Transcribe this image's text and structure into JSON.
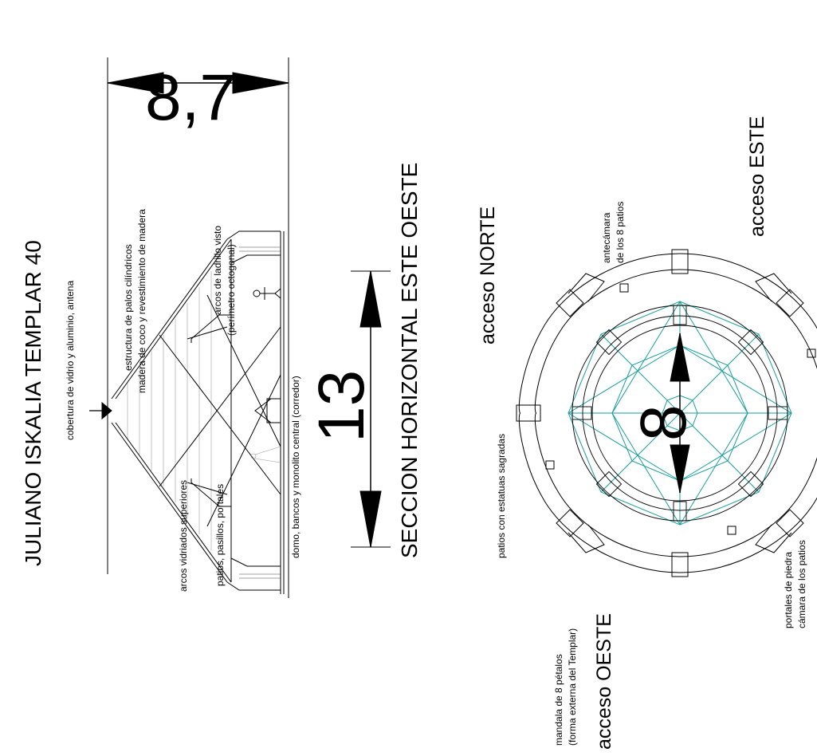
{
  "title": "JULIANO ISKALIA TEMPLAR 40",
  "section_title": "SECCION HORIZONTAL ESTE OESTE",
  "dimensions": {
    "height_value": "8,7",
    "width_value": "13",
    "inner_value": "8"
  },
  "elevation_labels": {
    "cover": "cobertura de vidrio y aluminio, antena",
    "structure_1": "estructura de palos cilíndricos",
    "structure_2": "madera de coco y revestimiento de madera",
    "arches_1": "arcos de ladrillo visto",
    "arches_2": "(perímetro octogonal)",
    "glazed_arches": "arcos vidriados superiores",
    "patios": "patios, pasillos, portales",
    "dome": "domo, bancos y monolito central (corredor)"
  },
  "plan_labels": {
    "north": "acceso NORTE",
    "east": "acceso ESTE",
    "west": "acceso OESTE",
    "antechamber_1": "antecámara",
    "antechamber_2": "de los 8 patios",
    "patios_statues": "patios con estatuas sagradas",
    "mandala_1": "mandala de 8 pétalos",
    "mandala_2": "(forma externa del Templar)",
    "portals_1": "portales de piedra",
    "portals_2": "cámara de los patios"
  },
  "colors": {
    "ink": "#000000",
    "plan_teal": "#1a9e9e"
  }
}
